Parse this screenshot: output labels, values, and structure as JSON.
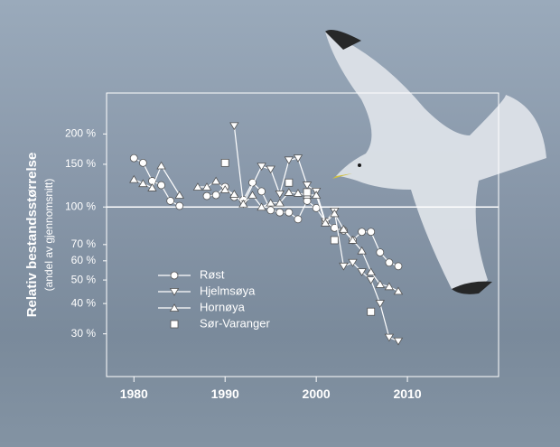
{
  "chart_data": {
    "type": "line",
    "y_label": "Relativ bestandsstørrelse",
    "y_sublabel": "(andel av gjennomsnitt)",
    "xlim": [
      1977,
      2020
    ],
    "xticks": [
      1980,
      1990,
      2000,
      2010
    ],
    "ylim": [
      20,
      295
    ],
    "yscale": "log",
    "yticks": [
      {
        "value": 30,
        "label": "30 %"
      },
      {
        "value": 40,
        "label": "40 %"
      },
      {
        "value": 50,
        "label": "50 %"
      },
      {
        "value": 60,
        "label": "60 %"
      },
      {
        "value": 70,
        "label": "70 %"
      },
      {
        "value": 100,
        "label": "100 %"
      },
      {
        "value": 150,
        "label": "150 %"
      },
      {
        "value": 200,
        "label": "200 %"
      }
    ],
    "reference_line": 100,
    "legend": "lower-left",
    "series": [
      {
        "name": "Røst",
        "color": "#ffffff",
        "marker": "circle",
        "line": true,
        "x": [
          1980,
          1981,
          1982,
          1983,
          1984,
          1985,
          1986,
          1988,
          1989,
          1990,
          1991,
          1992,
          1993,
          1994,
          1995,
          1996,
          1997,
          1998,
          1999,
          2000,
          2001,
          2002,
          2003,
          2004,
          2005,
          2006,
          2007,
          2008,
          2009
        ],
        "values": [
          159,
          152,
          128,
          123,
          106,
          101,
          null,
          111,
          112,
          121,
          110,
          107,
          126,
          116,
          97,
          95,
          95,
          89,
          106,
          99,
          87,
          82,
          80,
          73,
          79,
          79,
          65,
          59,
          57
        ]
      },
      {
        "name": "Hjelmsøya",
        "color": "#ffffff",
        "marker": "triangle-down",
        "line": true,
        "x": [
          1991,
          1992,
          1994,
          1995,
          1996,
          1997,
          1998,
          1999,
          2000,
          2001,
          2002,
          2003,
          2004,
          2005,
          2006,
          2007,
          2008,
          2009
        ],
        "values": [
          216,
          103,
          147,
          143,
          113,
          156,
          159,
          123,
          116,
          87,
          96,
          57,
          59,
          54,
          50,
          40,
          29,
          28
        ]
      },
      {
        "name": "Hornøya",
        "color": "#ffffff",
        "marker": "triangle-up",
        "line": true,
        "x": [
          1980,
          1981,
          1982,
          1983,
          1985,
          1986,
          1987,
          1988,
          1989,
          1990,
          1991,
          1992,
          1993,
          1994,
          1995,
          1996,
          1997,
          1998,
          1999,
          2000,
          2001,
          2002,
          2003,
          2004,
          2005,
          2006,
          2007,
          2008,
          2009
        ],
        "values": [
          130,
          125,
          120,
          148,
          112,
          null,
          121,
          121,
          128,
          118,
          113,
          103,
          112,
          100,
          104,
          104,
          115,
          114,
          112,
          112,
          86,
          94,
          81,
          73,
          66,
          54,
          48,
          47,
          45
        ]
      },
      {
        "name": "Sør-Varanger",
        "color": "#ffffff",
        "marker": "square",
        "line": false,
        "x": [
          1990,
          1997,
          1999,
          2002,
          2006
        ],
        "values": [
          152,
          126,
          115,
          73,
          37
        ]
      }
    ]
  }
}
